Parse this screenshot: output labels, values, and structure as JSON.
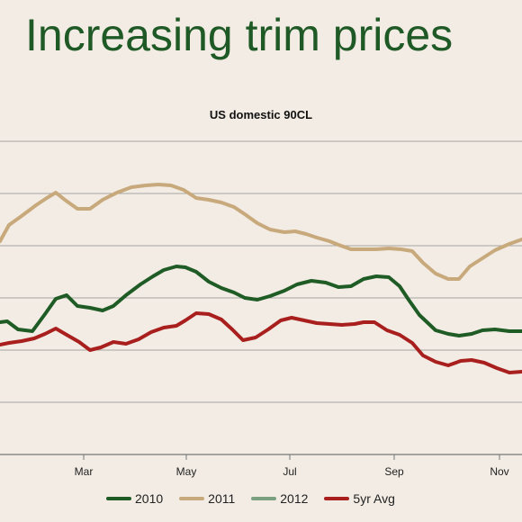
{
  "slide": {
    "title": "Increasing trim prices"
  },
  "chart_data": {
    "type": "line",
    "title": "US domestic 90CL",
    "x_ticks": [
      "Mar",
      "May",
      "Jul",
      "Sep",
      "Nov"
    ],
    "grid": true,
    "legend_position": "bottom",
    "series": [
      {
        "name": "2010",
        "color": "#1e5b25",
        "points": [
          [
            0,
            358
          ],
          [
            8,
            357
          ],
          [
            20,
            366
          ],
          [
            36,
            368
          ],
          [
            50,
            349
          ],
          [
            62,
            332
          ],
          [
            74,
            328
          ],
          [
            86,
            340
          ],
          [
            100,
            342
          ],
          [
            114,
            345
          ],
          [
            126,
            340
          ],
          [
            140,
            328
          ],
          [
            156,
            316
          ],
          [
            170,
            307
          ],
          [
            182,
            300
          ],
          [
            196,
            296
          ],
          [
            206,
            297
          ],
          [
            218,
            302
          ],
          [
            232,
            313
          ],
          [
            246,
            320
          ],
          [
            260,
            325
          ],
          [
            272,
            331
          ],
          [
            286,
            333
          ],
          [
            300,
            329
          ],
          [
            316,
            323
          ],
          [
            330,
            316
          ],
          [
            346,
            312
          ],
          [
            362,
            314
          ],
          [
            376,
            319
          ],
          [
            390,
            318
          ],
          [
            404,
            310
          ],
          [
            418,
            307
          ],
          [
            432,
            308
          ],
          [
            444,
            318
          ],
          [
            454,
            333
          ],
          [
            466,
            350
          ],
          [
            484,
            367
          ],
          [
            498,
            371
          ],
          [
            510,
            373
          ],
          [
            524,
            371
          ],
          [
            536,
            367
          ],
          [
            550,
            366
          ],
          [
            566,
            368
          ],
          [
            580,
            368
          ]
        ]
      },
      {
        "name": "2011",
        "color": "#c8a97c",
        "points": [
          [
            0,
            268
          ],
          [
            10,
            250
          ],
          [
            24,
            240
          ],
          [
            40,
            228
          ],
          [
            52,
            220
          ],
          [
            62,
            214
          ],
          [
            72,
            222
          ],
          [
            86,
            232
          ],
          [
            100,
            232
          ],
          [
            114,
            222
          ],
          [
            130,
            214
          ],
          [
            146,
            208
          ],
          [
            162,
            206
          ],
          [
            176,
            205
          ],
          [
            190,
            206
          ],
          [
            204,
            211
          ],
          [
            218,
            220
          ],
          [
            232,
            222
          ],
          [
            246,
            225
          ],
          [
            260,
            230
          ],
          [
            272,
            238
          ],
          [
            286,
            248
          ],
          [
            300,
            255
          ],
          [
            316,
            258
          ],
          [
            328,
            257
          ],
          [
            340,
            260
          ],
          [
            352,
            264
          ],
          [
            366,
            268
          ],
          [
            376,
            272
          ],
          [
            390,
            277
          ],
          [
            404,
            277
          ],
          [
            418,
            277
          ],
          [
            432,
            276
          ],
          [
            446,
            277
          ],
          [
            458,
            279
          ],
          [
            470,
            292
          ],
          [
            484,
            304
          ],
          [
            498,
            310
          ],
          [
            510,
            310
          ],
          [
            522,
            296
          ],
          [
            536,
            287
          ],
          [
            550,
            278
          ],
          [
            566,
            271
          ],
          [
            580,
            266
          ]
        ]
      },
      {
        "name": "2012",
        "color": "#7aa07f",
        "points": []
      },
      {
        "name": "5yr Avg",
        "color": "#a81f1e",
        "points": [
          [
            0,
            383
          ],
          [
            10,
            381
          ],
          [
            24,
            379
          ],
          [
            38,
            376
          ],
          [
            50,
            371
          ],
          [
            62,
            365
          ],
          [
            74,
            372
          ],
          [
            88,
            380
          ],
          [
            100,
            389
          ],
          [
            112,
            386
          ],
          [
            126,
            380
          ],
          [
            140,
            382
          ],
          [
            154,
            377
          ],
          [
            168,
            369
          ],
          [
            182,
            364
          ],
          [
            196,
            362
          ],
          [
            206,
            356
          ],
          [
            218,
            348
          ],
          [
            232,
            349
          ],
          [
            246,
            355
          ],
          [
            258,
            366
          ],
          [
            270,
            378
          ],
          [
            284,
            375
          ],
          [
            298,
            366
          ],
          [
            312,
            356
          ],
          [
            324,
            353
          ],
          [
            338,
            356
          ],
          [
            352,
            359
          ],
          [
            366,
            360
          ],
          [
            380,
            361
          ],
          [
            394,
            360
          ],
          [
            404,
            358
          ],
          [
            416,
            358
          ],
          [
            430,
            367
          ],
          [
            444,
            372
          ],
          [
            458,
            381
          ],
          [
            470,
            395
          ],
          [
            484,
            402
          ],
          [
            498,
            406
          ],
          [
            512,
            401
          ],
          [
            524,
            400
          ],
          [
            538,
            403
          ],
          [
            552,
            409
          ],
          [
            566,
            414
          ],
          [
            580,
            413
          ]
        ]
      }
    ]
  }
}
